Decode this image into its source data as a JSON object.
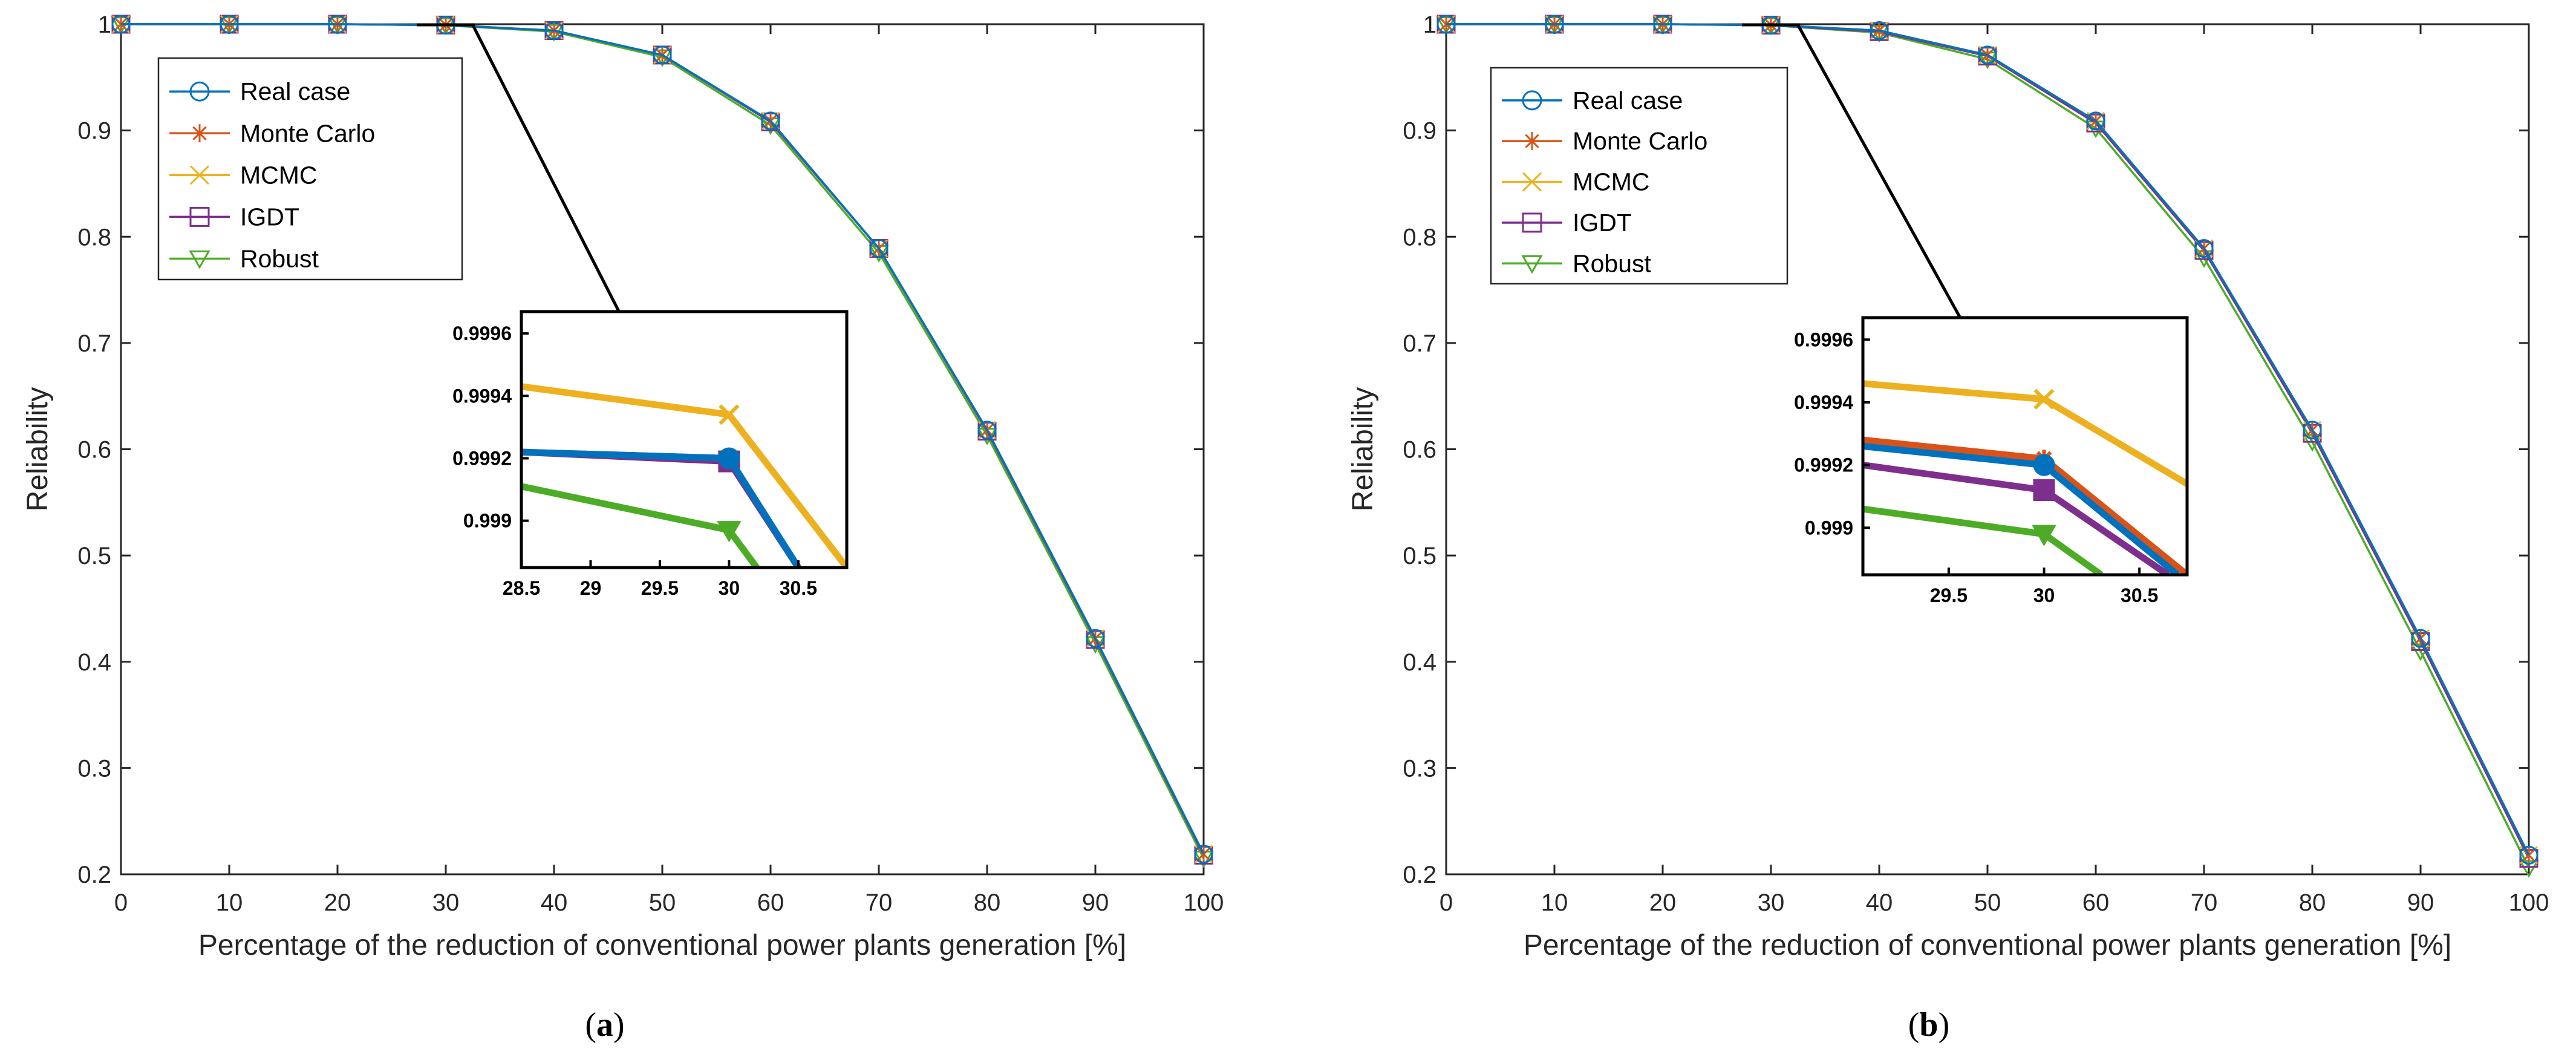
{
  "colors": {
    "real_case": "#0072BD",
    "monte_carlo": "#D95319",
    "mcmc": "#EDB120",
    "igdt": "#7E2F8E",
    "robust": "#4DAC26",
    "axis": "#262626"
  },
  "chart_data": [
    {
      "id": "a",
      "type": "line",
      "caption_open": "(",
      "caption_letter": "a",
      "caption_close": ")",
      "xlabel": "Percentage of the reduction of conventional power plants generation [%]",
      "ylabel": "Reliability",
      "xlim": [
        0,
        100
      ],
      "ylim": [
        0.2,
        1
      ],
      "xticks": [
        0,
        10,
        20,
        30,
        40,
        50,
        60,
        70,
        80,
        90,
        100
      ],
      "yticks": [
        0.2,
        0.3,
        0.4,
        0.5,
        0.6,
        0.7,
        0.8,
        0.9,
        1
      ],
      "xtick_labels": [
        "0",
        "10",
        "20",
        "30",
        "40",
        "50",
        "60",
        "70",
        "80",
        "90",
        "100"
      ],
      "ytick_labels": [
        "0.2",
        "0.3",
        "0.4",
        "0.5",
        "0.6",
        "0.7",
        "0.8",
        "0.9",
        "1"
      ],
      "grid": false,
      "legend_position": "top-left",
      "x": [
        0,
        10,
        20,
        30,
        40,
        50,
        60,
        70,
        80,
        90,
        100
      ],
      "series": [
        {
          "name": "Real case",
          "key": "real_case",
          "marker": "circle",
          "values": [
            1,
            1,
            1,
            0.9992,
            0.994,
            0.971,
            0.909,
            0.789,
            0.618,
            0.422,
            0.219
          ]
        },
        {
          "name": "Monte Carlo",
          "key": "monte_carlo",
          "marker": "asterisk",
          "values": [
            1,
            1,
            1,
            0.9992,
            0.994,
            0.971,
            0.909,
            0.789,
            0.618,
            0.422,
            0.219
          ]
        },
        {
          "name": "MCMC",
          "key": "mcmc",
          "marker": "x",
          "values": [
            1,
            1,
            1,
            0.9994,
            0.994,
            0.971,
            0.909,
            0.789,
            0.618,
            0.422,
            0.219
          ]
        },
        {
          "name": "IGDT",
          "key": "igdt",
          "marker": "square",
          "values": [
            1,
            1,
            1,
            0.9992,
            0.994,
            0.971,
            0.908,
            0.789,
            0.617,
            0.421,
            0.218
          ]
        },
        {
          "name": "Robust",
          "key": "robust",
          "marker": "triangle-down",
          "values": [
            1,
            1,
            1,
            0.999,
            0.993,
            0.969,
            0.905,
            0.785,
            0.613,
            0.417,
            0.215
          ]
        }
      ],
      "inset": {
        "xlim": [
          28.5,
          30.85
        ],
        "ylim": [
          0.99885,
          0.99967
        ],
        "xticks": [
          28.5,
          29,
          29.5,
          30,
          30.5
        ],
        "xtick_labels": [
          "28.5",
          "29",
          "29.5",
          "30",
          "30.5"
        ],
        "yticks": [
          0.999,
          0.9992,
          0.9994,
          0.9996
        ],
        "ytick_labels": [
          "0.999",
          "0.9992",
          "0.9994",
          "0.9996"
        ],
        "callout_target": [
          30,
          1
        ],
        "series": [
          {
            "key": "real_case",
            "marker": "circle",
            "points": [
              [
                28.5,
                0.99922
              ],
              [
                30,
                0.9992
              ],
              [
                30.5,
                0.99885
              ]
            ]
          },
          {
            "key": "monte_carlo",
            "marker": "asterisk",
            "points": [
              [
                28.5,
                0.99922
              ],
              [
                30,
                0.9992
              ],
              [
                30.5,
                0.99885
              ]
            ]
          },
          {
            "key": "mcmc",
            "marker": "x",
            "points": [
              [
                28.5,
                0.99943
              ],
              [
                30,
                0.99934
              ],
              [
                30.85,
                0.99885
              ]
            ]
          },
          {
            "key": "igdt",
            "marker": "square",
            "points": [
              [
                28.5,
                0.99922
              ],
              [
                30,
                0.99919
              ],
              [
                30.5,
                0.99885
              ]
            ]
          },
          {
            "key": "robust",
            "marker": "triangle-down",
            "points": [
              [
                28.5,
                0.99911
              ],
              [
                30,
                0.99897
              ],
              [
                30.2,
                0.99885
              ]
            ]
          }
        ]
      }
    },
    {
      "id": "b",
      "type": "line",
      "caption_open": "(",
      "caption_letter": "b",
      "caption_close": ")",
      "xlabel": "Percentage of the reduction of conventional power plants generation [%]",
      "ylabel": "Reliability",
      "xlim": [
        0,
        100
      ],
      "ylim": [
        0.2,
        1
      ],
      "xticks": [
        0,
        10,
        20,
        30,
        40,
        50,
        60,
        70,
        80,
        90,
        100
      ],
      "yticks": [
        0.2,
        0.3,
        0.4,
        0.5,
        0.6,
        0.7,
        0.8,
        0.9,
        1
      ],
      "xtick_labels": [
        "0",
        "10",
        "20",
        "30",
        "40",
        "50",
        "60",
        "70",
        "80",
        "90",
        "100"
      ],
      "ytick_labels": [
        "0.2",
        "0.3",
        "0.4",
        "0.5",
        "0.6",
        "0.7",
        "0.8",
        "0.9",
        "1"
      ],
      "grid": false,
      "legend_position": "top-left",
      "x": [
        0,
        10,
        20,
        30,
        40,
        50,
        60,
        70,
        80,
        90,
        100
      ],
      "series": [
        {
          "name": "Real case",
          "key": "real_case",
          "marker": "circle",
          "values": [
            1,
            1,
            1,
            0.9992,
            0.994,
            0.971,
            0.909,
            0.789,
            0.618,
            0.422,
            0.218
          ]
        },
        {
          "name": "Monte Carlo",
          "key": "monte_carlo",
          "marker": "asterisk",
          "values": [
            1,
            1,
            1,
            0.9992,
            0.994,
            0.971,
            0.909,
            0.789,
            0.618,
            0.422,
            0.218
          ]
        },
        {
          "name": "MCMC",
          "key": "mcmc",
          "marker": "x",
          "values": [
            1,
            1,
            1,
            0.9994,
            0.994,
            0.971,
            0.909,
            0.789,
            0.618,
            0.422,
            0.218
          ]
        },
        {
          "name": "IGDT",
          "key": "igdt",
          "marker": "square",
          "values": [
            1,
            1,
            1,
            0.9991,
            0.993,
            0.97,
            0.907,
            0.787,
            0.615,
            0.419,
            0.215
          ]
        },
        {
          "name": "Robust",
          "key": "robust",
          "marker": "triangle-down",
          "values": [
            1,
            1,
            1,
            0.999,
            0.992,
            0.967,
            0.902,
            0.78,
            0.607,
            0.41,
            0.206
          ]
        }
      ],
      "inset": {
        "xlim": [
          29.05,
          30.75
        ],
        "ylim": [
          0.99885,
          0.99967
        ],
        "xticks": [
          29.5,
          30,
          30.5
        ],
        "xtick_labels": [
          "29.5",
          "30",
          "30.5"
        ],
        "yticks": [
          0.999,
          0.9992,
          0.9994,
          0.9996
        ],
        "ytick_labels": [
          "0.999",
          "0.9992",
          "0.9994",
          "0.9996"
        ],
        "callout_target": [
          30,
          1
        ],
        "series": [
          {
            "key": "real_case",
            "marker": "circle",
            "points": [
              [
                29.05,
                0.99926
              ],
              [
                30,
                0.9992
              ],
              [
                30.7,
                0.99885
              ]
            ]
          },
          {
            "key": "monte_carlo",
            "marker": "asterisk",
            "points": [
              [
                29.05,
                0.99928
              ],
              [
                30,
                0.99922
              ],
              [
                30.75,
                0.99885
              ]
            ]
          },
          {
            "key": "mcmc",
            "marker": "x",
            "points": [
              [
                29.05,
                0.99946
              ],
              [
                30,
                0.99941
              ],
              [
                30.75,
                0.99914
              ]
            ]
          },
          {
            "key": "igdt",
            "marker": "square",
            "points": [
              [
                29.05,
                0.9992
              ],
              [
                30,
                0.99912
              ],
              [
                30.65,
                0.99885
              ]
            ]
          },
          {
            "key": "robust",
            "marker": "triangle-down",
            "points": [
              [
                29.05,
                0.99906
              ],
              [
                30,
                0.99898
              ],
              [
                30.3,
                0.99885
              ]
            ]
          }
        ]
      }
    }
  ]
}
